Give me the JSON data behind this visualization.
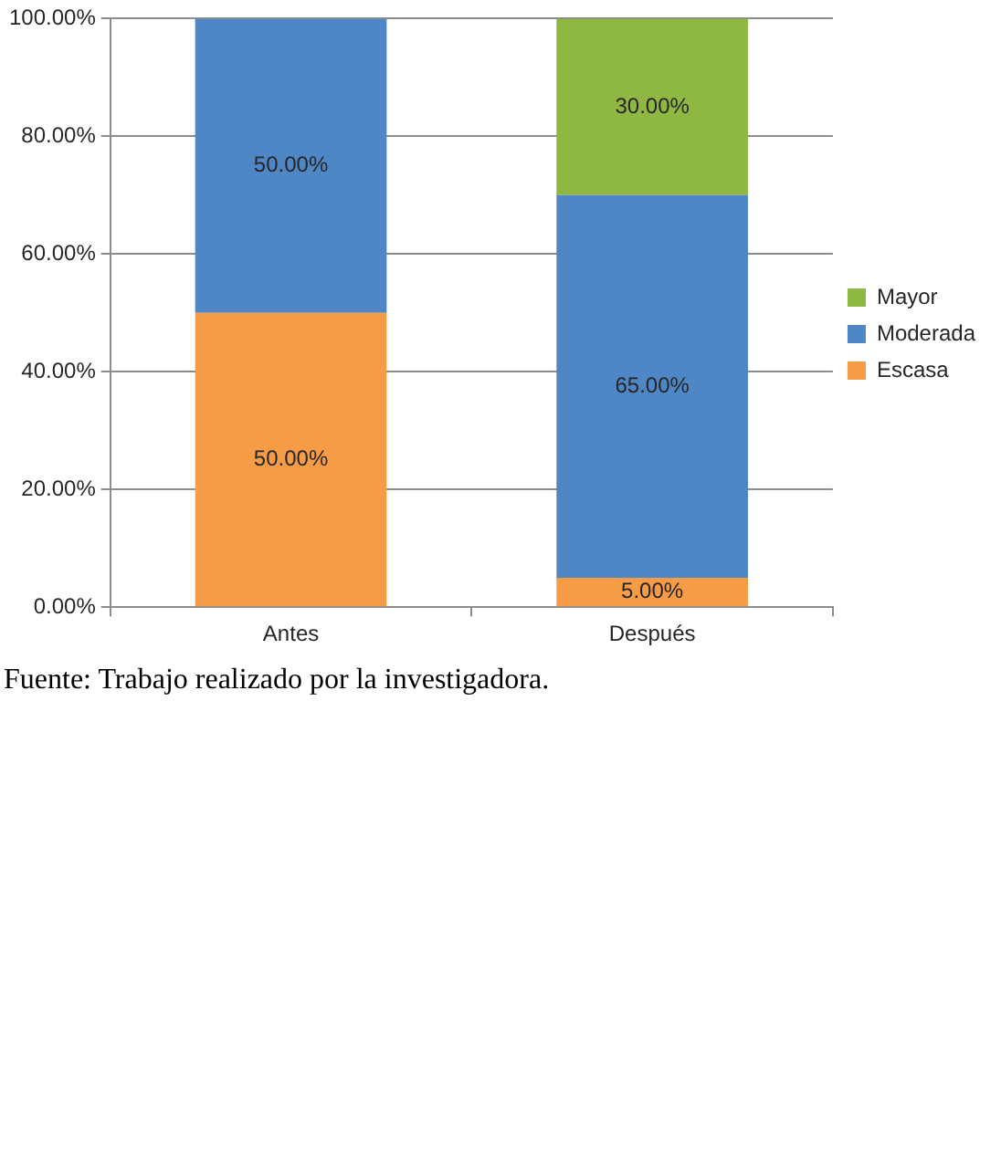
{
  "chart_data": {
    "type": "bar",
    "stacked": true,
    "categories": [
      "Antes",
      "Después"
    ],
    "series": [
      {
        "name": "Escasa",
        "color": "#f79c46",
        "values": [
          50,
          5
        ],
        "value_labels": [
          "50.00%",
          "5.00%"
        ]
      },
      {
        "name": "Moderada",
        "color": "#4f86c6",
        "values": [
          50,
          65
        ],
        "value_labels": [
          "50.00%",
          "65.00%"
        ]
      },
      {
        "name": "Mayor",
        "color": "#8fb843",
        "values": [
          null,
          30
        ],
        "value_labels": [
          null,
          "30.00%"
        ]
      }
    ],
    "ylim": [
      0,
      100
    ],
    "yticks": [
      {
        "value": 0,
        "label": "0.00%"
      },
      {
        "value": 20,
        "label": "20.00%"
      },
      {
        "value": 40,
        "label": "40.00%"
      },
      {
        "value": 60,
        "label": "60.00%"
      },
      {
        "value": 80,
        "label": "80.00%"
      },
      {
        "value": 100,
        "label": "100.00%"
      }
    ],
    "grid": "y",
    "legend": "right",
    "annotations": [
      "Fuente: Trabajo realizado por la investigadora."
    ]
  }
}
